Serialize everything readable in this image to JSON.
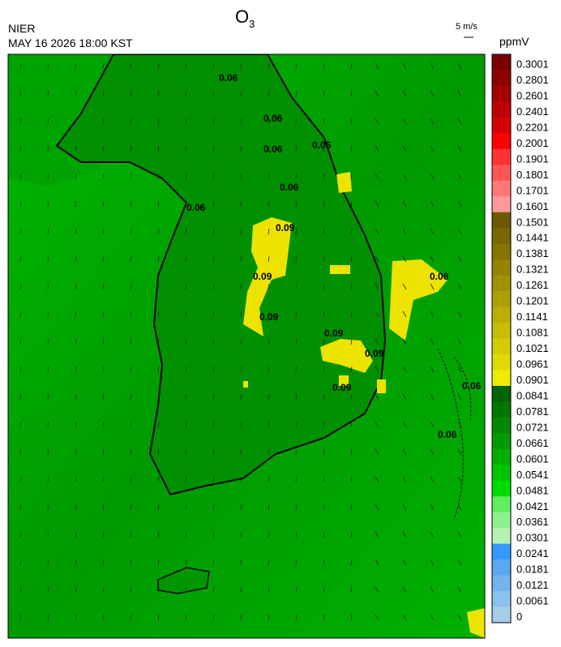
{
  "header": {
    "title": {
      "text": "O",
      "subscript": "3"
    },
    "agency": "NIER",
    "timestamp": "MAY 16 2026 18:00 KST",
    "wind_scale": "5 m/s"
  },
  "colorbar": {
    "unit": "ppmV",
    "items": [
      {
        "value": 0.3001,
        "color": "#7a0000"
      },
      {
        "value": 0.2801,
        "color": "#8e0000"
      },
      {
        "value": 0.2601,
        "color": "#a50000"
      },
      {
        "value": 0.2401,
        "color": "#bd0000"
      },
      {
        "value": 0.2201,
        "color": "#d60000"
      },
      {
        "value": 0.2001,
        "color": "#ff0000"
      },
      {
        "value": 0.1901,
        "color": "#ff3333"
      },
      {
        "value": 0.1801,
        "color": "#ff5555"
      },
      {
        "value": 0.1701,
        "color": "#ff7777"
      },
      {
        "value": 0.1601,
        "color": "#ff9999"
      },
      {
        "value": 0.1501,
        "color": "#6b5a00"
      },
      {
        "value": 0.1441,
        "color": "#786800"
      },
      {
        "value": 0.1381,
        "color": "#857500"
      },
      {
        "value": 0.1321,
        "color": "#938300"
      },
      {
        "value": 0.1261,
        "color": "#a19100"
      },
      {
        "value": 0.1201,
        "color": "#ae9f00"
      },
      {
        "value": 0.1141,
        "color": "#bcad00"
      },
      {
        "value": 0.1081,
        "color": "#c9bb00"
      },
      {
        "value": 0.1021,
        "color": "#d6ca00"
      },
      {
        "value": 0.0961,
        "color": "#e3d900"
      },
      {
        "value": 0.0901,
        "color": "#f2ea00"
      },
      {
        "value": 0.0841,
        "color": "#006400"
      },
      {
        "value": 0.0781,
        "color": "#007600"
      },
      {
        "value": 0.0721,
        "color": "#008900"
      },
      {
        "value": 0.0661,
        "color": "#009b00"
      },
      {
        "value": 0.0601,
        "color": "#00ae00"
      },
      {
        "value": 0.0541,
        "color": "#00c400"
      },
      {
        "value": 0.0481,
        "color": "#00dc00"
      },
      {
        "value": 0.0421,
        "color": "#5eee5e"
      },
      {
        "value": 0.0361,
        "color": "#8ff08f"
      },
      {
        "value": 0.0301,
        "color": "#b4f2b4"
      },
      {
        "value": 0.0241,
        "color": "#3399ff"
      },
      {
        "value": 0.0181,
        "color": "#5aa8ee"
      },
      {
        "value": 0.0121,
        "color": "#73b4ee"
      },
      {
        "value": 0.0061,
        "color": "#8cc0ee"
      },
      {
        "value": 0,
        "color": "#a6cde8"
      }
    ]
  },
  "contour_labels": [
    "0.06",
    "0.06",
    "0.06",
    "0.06",
    "0.06",
    "0.06",
    "0.09",
    "0.09",
    "0.09",
    "0.09",
    "0.09",
    "0.09",
    "0.06",
    "0.06",
    "0.06"
  ]
}
